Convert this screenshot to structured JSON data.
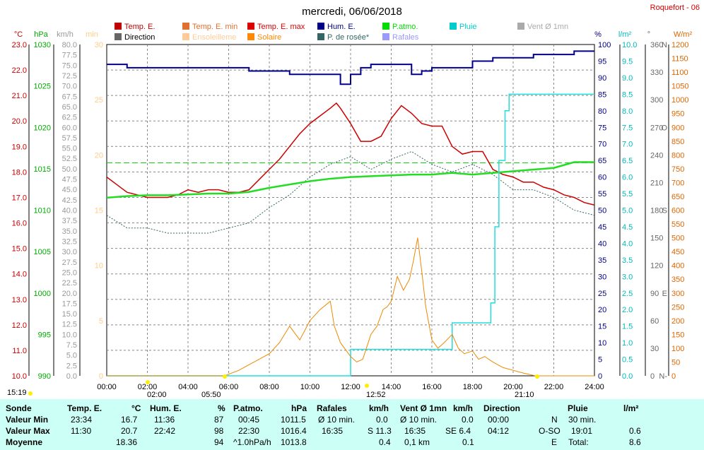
{
  "title": "mercredi, 06/06/2018",
  "station": "Roquefort - 06",
  "legend": [
    {
      "label": "Temp. E.",
      "color": "#c00000"
    },
    {
      "label": "Temp. E. min",
      "color": "#e07030"
    },
    {
      "label": "Temp. E. max",
      "color": "#dd0000"
    },
    {
      "label": "Hum. E.",
      "color": "#00008b"
    },
    {
      "label": "P.atmo.",
      "color": "#00dd00"
    },
    {
      "label": "Pluie",
      "color": "#00cccc"
    },
    {
      "label": "Vent Ø 1mn",
      "color": "#aaaaaa"
    },
    {
      "label": "Direction",
      "color": "#666666"
    },
    {
      "label": "Ensoleilleme",
      "color": "#ffcc99"
    },
    {
      "label": "Solaire",
      "color": "#ff8800"
    },
    {
      "label": "P. de rosée*",
      "color": "#336666"
    },
    {
      "label": "Rafales",
      "color": "#9999ff"
    }
  ],
  "axes": {
    "temp": {
      "unit": "°C",
      "color": "#cc0000",
      "ticks": [
        "10.0",
        "11.0",
        "12.0",
        "13.0",
        "14.0",
        "15.0",
        "16.0",
        "17.0",
        "18.0",
        "19.0",
        "20.0",
        "21.0",
        "22.0",
        "23.0"
      ]
    },
    "press": {
      "unit": "hPa",
      "color": "#00aa00",
      "ticks": [
        "990",
        "995",
        "1000",
        "1005",
        "1010",
        "1015",
        "1020",
        "1025",
        "1030"
      ]
    },
    "wind": {
      "unit": "km/h",
      "color": "#999999",
      "ticks": [
        "0.0",
        "2.5",
        "5.0",
        "7.5",
        "10.0",
        "12.5",
        "15.0",
        "17.5",
        "20.0",
        "22.5",
        "25.0",
        "27.5",
        "30.0",
        "32.5",
        "35.0",
        "37.5",
        "40.0",
        "42.5",
        "45.0",
        "47.5",
        "50.0",
        "52.5",
        "55.0",
        "57.5",
        "60.0",
        "62.5",
        "65.0",
        "67.5",
        "70.0",
        "72.5",
        "75.0",
        "77.5",
        "80.0"
      ]
    },
    "min": {
      "unit": "min",
      "color": "#ffcc88",
      "ticks": [
        "0",
        "5",
        "10",
        "15",
        "20",
        "25",
        "30"
      ]
    },
    "hum": {
      "unit": "%",
      "color": "#000080",
      "ticks": [
        "0",
        "5",
        "10",
        "15",
        "20",
        "25",
        "30",
        "35",
        "40",
        "45",
        "50",
        "55",
        "60",
        "65",
        "70",
        "75",
        "80",
        "85",
        "90",
        "95",
        "100"
      ]
    },
    "rain": {
      "unit": "l/m²",
      "color": "#00bbbb",
      "ticks": [
        "0.0",
        "0.5",
        "1.0",
        "1.5",
        "2.0",
        "2.5",
        "3.0",
        "3.5",
        "4.0",
        "4.5",
        "5.0",
        "5.5",
        "6.0",
        "6.5",
        "7.0",
        "7.5",
        "8.0",
        "8.5",
        "9.0",
        "9.5",
        "10.0"
      ]
    },
    "dir": {
      "unit": "°",
      "color": "#666666",
      "ticks": [
        "0",
        "30",
        "60",
        "90",
        "120",
        "150",
        "180",
        "210",
        "240",
        "270",
        "300",
        "330",
        "360"
      ],
      "compass": [
        "N-",
        "",
        "",
        "E",
        "",
        "",
        "S",
        "",
        "",
        "O",
        "",
        "",
        "N"
      ]
    },
    "solar": {
      "unit": "W/m²",
      "color": "#dd6600",
      "ticks": [
        "0",
        "50",
        "100",
        "150",
        "200",
        "250",
        "300",
        "350",
        "400",
        "450",
        "500",
        "550",
        "600",
        "650",
        "700",
        "750",
        "800",
        "850",
        "900",
        "950",
        "1000",
        "1050",
        "1100",
        "1150",
        "1200"
      ]
    },
    "time": {
      "ticks": [
        "00:00",
        "02:00",
        "04:00",
        "06:00",
        "08:00",
        "10:00",
        "12:00",
        "14:00",
        "16:00",
        "18:00",
        "20:00",
        "22:00",
        "24:00"
      ]
    }
  },
  "sun": {
    "rise_left": "15:19",
    "rise": "02:00",
    "set_dot": "05:50",
    "noon": "12:52",
    "set": "21:10"
  },
  "chart_data": {
    "type": "line",
    "x_unit": "hours",
    "series": [
      {
        "name": "Temp. E.",
        "axis": "temp",
        "x": [
          0,
          0.5,
          1,
          1.5,
          2,
          2.5,
          3,
          3.5,
          4,
          4.5,
          5,
          5.5,
          6,
          6.5,
          7,
          7.5,
          8,
          8.5,
          9,
          9.5,
          10,
          10.5,
          11,
          11.3,
          11.5,
          12,
          12.5,
          13,
          13.5,
          14,
          14.5,
          15,
          15.5,
          16,
          16.5,
          17,
          17.5,
          18,
          18.5,
          19,
          19.5,
          20,
          20.5,
          21,
          21.5,
          22,
          22.5,
          23,
          23.5,
          24
        ],
        "y": [
          17.8,
          17.5,
          17.2,
          17.1,
          17.0,
          17.0,
          17.0,
          17.1,
          17.3,
          17.2,
          17.3,
          17.3,
          17.2,
          17.2,
          17.3,
          17.7,
          18.1,
          18.5,
          19.0,
          19.5,
          19.9,
          20.2,
          20.5,
          20.7,
          20.5,
          19.9,
          19.2,
          19.2,
          19.4,
          20.1,
          20.6,
          20.3,
          19.9,
          19.8,
          19.8,
          19.0,
          18.7,
          18.8,
          18.8,
          18.1,
          17.9,
          17.8,
          17.6,
          17.6,
          17.4,
          17.3,
          17.1,
          17.0,
          16.8,
          16.7
        ]
      },
      {
        "name": "P. de rosée*",
        "axis": "temp",
        "x": [
          0,
          1,
          2,
          3,
          4,
          5,
          6,
          7,
          8,
          9,
          10,
          11,
          12,
          13,
          14,
          15,
          16,
          17,
          18,
          19,
          20,
          21,
          22,
          23,
          24
        ],
        "y": [
          16.3,
          15.8,
          15.8,
          15.6,
          15.6,
          15.6,
          15.8,
          16.0,
          16.6,
          17.1,
          17.8,
          18.3,
          18.6,
          18.1,
          18.5,
          18.8,
          18.3,
          18.0,
          18.3,
          17.9,
          17.3,
          17.3,
          17.0,
          16.5,
          16.3
        ]
      },
      {
        "name": "P.atmo.",
        "axis": "press",
        "x": [
          0,
          1,
          2,
          3,
          4,
          5,
          6,
          7,
          8,
          9,
          10,
          11,
          12,
          13,
          14,
          15,
          16,
          17,
          18,
          19,
          20,
          21,
          22,
          23,
          24
        ],
        "y": [
          1011.5,
          1011.7,
          1011.8,
          1011.8,
          1011.9,
          1012.0,
          1012.0,
          1012.2,
          1012.7,
          1013.1,
          1013.5,
          1013.8,
          1014.0,
          1014.1,
          1014.2,
          1014.3,
          1014.3,
          1014.5,
          1014.3,
          1014.5,
          1014.7,
          1014.9,
          1015.1,
          1015.8,
          1015.8
        ]
      },
      {
        "name": "Hum. E.",
        "axis": "hum",
        "x": [
          0,
          1,
          2,
          3,
          4,
          5,
          6,
          7,
          8,
          9,
          10,
          11,
          11.5,
          12,
          12.5,
          13,
          13.5,
          14,
          14.5,
          15,
          15.5,
          16,
          16.5,
          17,
          18,
          19,
          20,
          21,
          22,
          23,
          24
        ],
        "y": [
          94,
          93,
          93,
          93,
          93,
          93,
          93,
          92,
          92,
          91,
          91,
          91,
          88,
          91,
          93,
          94,
          94,
          94,
          94,
          91,
          92,
          93,
          93,
          93,
          95,
          96,
          96,
          97,
          97,
          98,
          98
        ]
      },
      {
        "name": "Pluie",
        "axis": "rain",
        "x": [
          0,
          11.5,
          12,
          16.5,
          17,
          18.5,
          18.9,
          19.1,
          19.3,
          19.6,
          19.8,
          20,
          24
        ],
        "y": [
          0,
          0,
          0.8,
          0.8,
          1.6,
          1.6,
          2.2,
          4.5,
          6.5,
          8.0,
          8.5,
          8.5,
          8.5
        ]
      },
      {
        "name": "Solaire",
        "axis": "solar",
        "x": [
          0,
          5.8,
          6.5,
          7,
          7.5,
          8,
          8.5,
          9,
          9.5,
          10,
          10.5,
          11,
          11.2,
          11.5,
          12,
          12.3,
          12.6,
          13,
          13.3,
          13.6,
          13.8,
          14,
          14.3,
          14.6,
          14.9,
          15.1,
          15.3,
          15.5,
          15.7,
          16,
          16.3,
          16.6,
          17,
          17.3,
          17.6,
          18,
          18.3,
          18.6,
          19,
          19.5,
          20,
          20.5,
          21.1,
          24
        ],
        "y": [
          0,
          0,
          20,
          40,
          60,
          80,
          120,
          180,
          130,
          200,
          240,
          270,
          180,
          120,
          70,
          50,
          60,
          150,
          180,
          240,
          250,
          270,
          360,
          310,
          350,
          420,
          500,
          380,
          250,
          130,
          100,
          120,
          150,
          100,
          80,
          90,
          60,
          70,
          50,
          30,
          20,
          10,
          0,
          0
        ]
      }
    ]
  },
  "stats": {
    "cols": [
      "Sonde",
      "Temp. E.",
      "°C",
      "Hum. E.",
      "%",
      "P.atmo.",
      "hPa",
      "Rafales",
      "km/h",
      "Vent Ø 1mn",
      "km/h",
      "Direction",
      "Pluie",
      "l/m²"
    ],
    "rows": [
      {
        "label": "Valeur Min",
        "t_time": "23:34",
        "t_val": "16.7",
        "h_time": "11:36",
        "h_val": "87",
        "p_time": "00:45",
        "p_val": "1011.5",
        "r_time": "Ø 10 min.",
        "r_val": "0.0",
        "v_time": "Ø 10 min.",
        "v_val": "0.0",
        "d_time": "00:00",
        "d_val": "N",
        "pl_time": "30 min.",
        "pl_val": ""
      },
      {
        "label": "Valeur Max",
        "t_time": "11:30",
        "t_val": "20.7",
        "h_time": "22:42",
        "h_val": "98",
        "p_time": "22:30",
        "p_val": "1016.4",
        "r_time": "16:35",
        "r_val": "S 11.3",
        "v_time": "16:35",
        "v_val": "SE 6.4",
        "d_time": "04:12",
        "d_val": "O-SO",
        "pl_time": "19:01",
        "pl_val": "0.6"
      },
      {
        "label": "Moyenne",
        "t_time": "",
        "t_val": "18.36",
        "h_time": "",
        "h_val": "94",
        "p_time": "^1.0hPa/h",
        "p_val": "1013.8",
        "r_time": "",
        "r_val": "0.4",
        "v_time": "0,1 km",
        "v_val": "0.1",
        "d_time": "",
        "d_val": "E",
        "pl_time": "Total:",
        "pl_val": "8.6"
      }
    ]
  }
}
